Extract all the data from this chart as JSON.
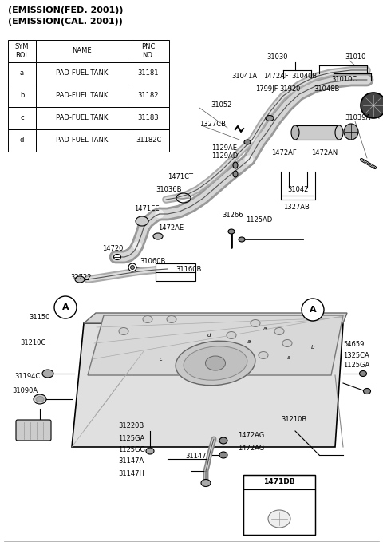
{
  "title_lines": [
    "(EMISSION(FED. 2001))",
    "(EMISSION(CAL. 2001))"
  ],
  "table_headers": [
    "SYM\nBOL",
    "NAME",
    "PNC\nNO."
  ],
  "table_rows": [
    [
      "a",
      "PAD-FUEL TANK",
      "31181"
    ],
    [
      "b",
      "PAD-FUEL TANK",
      "31182"
    ],
    [
      "c",
      "PAD-FUEL TANK",
      "31183"
    ],
    [
      "d",
      "PAD-FUEL TANK",
      "31182C"
    ]
  ],
  "bg_color": "#ffffff",
  "text_color": "#000000",
  "fig_width": 4.8,
  "fig_height": 6.84,
  "dpi": 100
}
